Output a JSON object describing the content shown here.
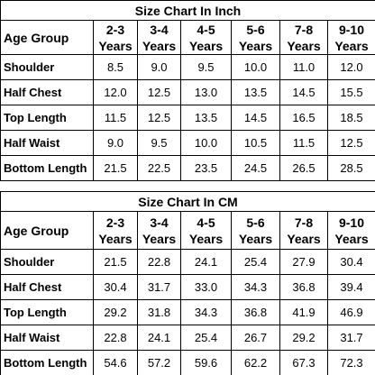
{
  "tables": [
    {
      "title": "Size Chart In Inch",
      "header": [
        "Age Group",
        "2-3 Years",
        "3-4 Years",
        "4-5 Years",
        "5-6 Years",
        "7-8 Years",
        "9-10 Years"
      ],
      "rows": [
        [
          "Shoulder",
          "8.5",
          "9.0",
          "9.5",
          "10.0",
          "11.0",
          "12.0"
        ],
        [
          "Half Chest",
          "12.0",
          "12.5",
          "13.0",
          "13.5",
          "14.5",
          "15.5"
        ],
        [
          "Top Length",
          "11.5",
          "12.5",
          "13.5",
          "14.5",
          "16.5",
          "18.5"
        ],
        [
          "Half Waist",
          "9.0",
          "9.5",
          "10.0",
          "10.5",
          "11.5",
          "12.5"
        ],
        [
          "Bottom Length",
          "21.5",
          "22.5",
          "23.5",
          "24.5",
          "26.5",
          "28.5"
        ]
      ]
    },
    {
      "title": "Size Chart In CM",
      "header": [
        "Age Group",
        "2-3 Years",
        "3-4 Years",
        "4-5 Years",
        "5-6 Years",
        "7-8 Years",
        "9-10 Years"
      ],
      "rows": [
        [
          "Shoulder",
          "21.5",
          "22.8",
          "24.1",
          "25.4",
          "27.9",
          "30.4"
        ],
        [
          "Half Chest",
          "30.4",
          "31.7",
          "33.0",
          "34.3",
          "36.8",
          "39.4"
        ],
        [
          "Top Length",
          "29.2",
          "31.8",
          "34.3",
          "36.8",
          "41.9",
          "46.9"
        ],
        [
          "Half Waist",
          "22.8",
          "24.1",
          "25.4",
          "26.7",
          "29.2",
          "31.7"
        ],
        [
          "Bottom Length",
          "54.6",
          "57.2",
          "59.6",
          "62.2",
          "67.3",
          "72.3"
        ]
      ]
    }
  ]
}
